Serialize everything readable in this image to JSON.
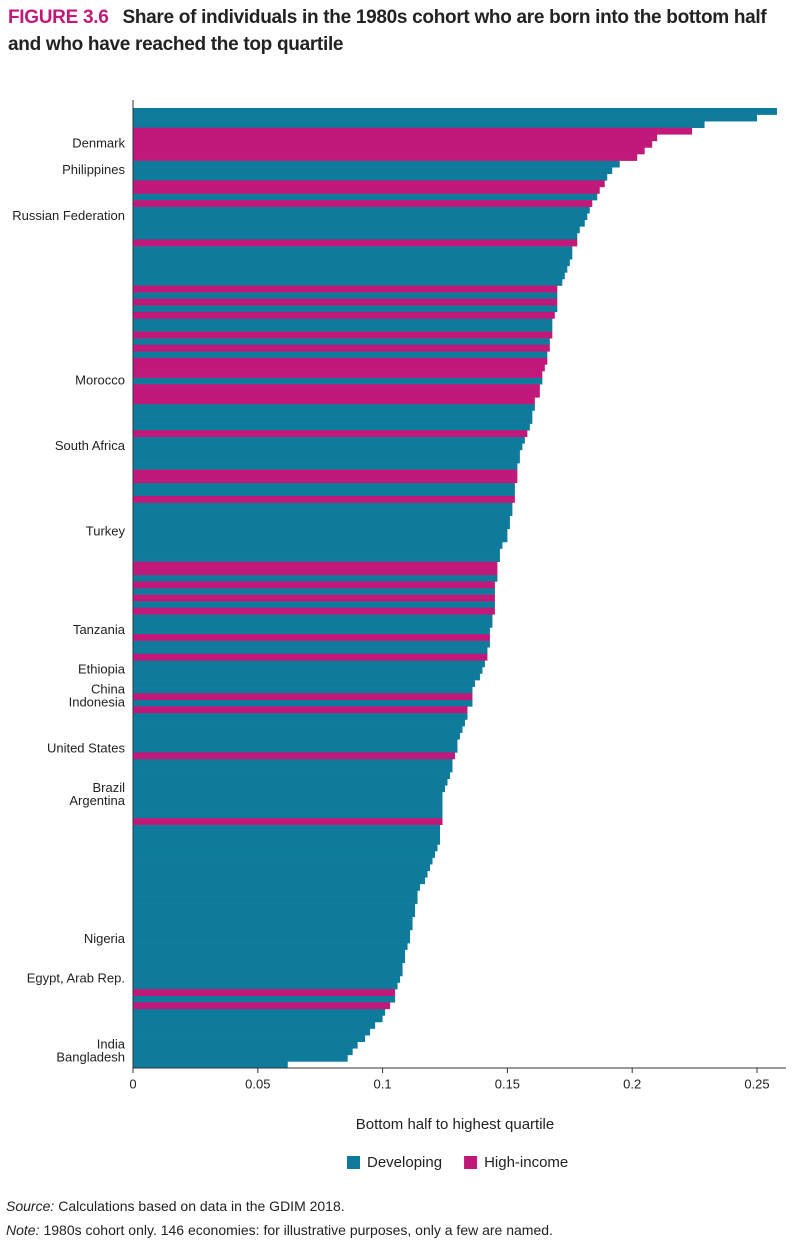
{
  "chart_data": {
    "type": "barh",
    "figure_label": "FIGURE 3.6",
    "title": "Share of individuals in the 1980s cohort who are born into the bottom half and who have reached the top quartile",
    "x_label": "Bottom half to highest quartile",
    "xlim": [
      0,
      0.26
    ],
    "xticks": [
      0,
      0.05,
      0.1,
      0.15,
      0.2,
      0.25
    ],
    "categories": [
      null,
      null,
      null,
      null,
      null,
      "Denmark",
      null,
      null,
      null,
      "Philippines",
      null,
      null,
      null,
      null,
      null,
      null,
      "Russian Federation",
      null,
      null,
      null,
      null,
      null,
      null,
      null,
      null,
      null,
      null,
      null,
      null,
      null,
      null,
      null,
      null,
      null,
      null,
      null,
      null,
      null,
      null,
      null,
      null,
      "Morocco",
      null,
      null,
      null,
      null,
      null,
      null,
      null,
      null,
      null,
      "South Africa",
      null,
      null,
      null,
      null,
      null,
      null,
      null,
      null,
      null,
      null,
      null,
      null,
      "Turkey",
      null,
      null,
      null,
      null,
      null,
      null,
      null,
      null,
      null,
      null,
      null,
      null,
      null,
      null,
      "Tanzania",
      null,
      null,
      null,
      null,
      null,
      "Ethiopia",
      null,
      null,
      "China",
      null,
      "Indonesia",
      null,
      null,
      null,
      null,
      null,
      null,
      "United States",
      null,
      null,
      null,
      null,
      null,
      "Brazil",
      null,
      "Argentina",
      null,
      null,
      null,
      null,
      null,
      null,
      null,
      null,
      null,
      null,
      null,
      null,
      null,
      null,
      null,
      null,
      null,
      null,
      null,
      null,
      "Nigeria",
      null,
      null,
      null,
      null,
      null,
      "Egypt, Arab Rep.",
      null,
      null,
      null,
      null,
      null,
      null,
      null,
      null,
      null,
      "India",
      null,
      "Bangladesh",
      null
    ],
    "series": [
      {
        "name": "Developing",
        "color": "#0e7b9c",
        "values": [
          0.258,
          0.25,
          0.229,
          null,
          null,
          null,
          null,
          null,
          0.195,
          0.192,
          0.19,
          null,
          null,
          0.186,
          null,
          0.183,
          0.182,
          0.181,
          0.179,
          0.178,
          null,
          0.176,
          0.176,
          0.175,
          0.174,
          0.173,
          0.172,
          null,
          0.17,
          null,
          0.17,
          null,
          0.168,
          0.168,
          null,
          0.167,
          null,
          0.166,
          null,
          null,
          null,
          0.164,
          null,
          null,
          null,
          0.161,
          0.16,
          0.16,
          0.159,
          null,
          0.157,
          0.156,
          0.155,
          0.155,
          0.154,
          null,
          null,
          0.153,
          0.153,
          null,
          0.152,
          0.152,
          0.151,
          0.151,
          0.15,
          0.15,
          0.148,
          0.147,
          0.147,
          null,
          null,
          0.146,
          null,
          0.145,
          null,
          0.145,
          null,
          0.144,
          0.144,
          0.143,
          null,
          0.143,
          0.142,
          null,
          0.141,
          0.14,
          0.139,
          0.137,
          0.136,
          null,
          0.136,
          null,
          0.134,
          0.133,
          0.132,
          0.131,
          0.13,
          0.13,
          null,
          0.128,
          0.128,
          0.127,
          0.126,
          0.125,
          0.124,
          0.124,
          0.124,
          0.124,
          null,
          0.123,
          0.123,
          0.123,
          0.122,
          0.121,
          0.12,
          0.119,
          0.118,
          0.117,
          0.115,
          0.114,
          0.114,
          0.113,
          0.113,
          0.112,
          0.112,
          0.111,
          0.111,
          0.11,
          0.109,
          0.109,
          0.108,
          0.108,
          0.107,
          0.106,
          null,
          0.105,
          null,
          0.101,
          0.1,
          0.097,
          0.095,
          0.093,
          0.09,
          0.088,
          0.086,
          0.062
        ]
      },
      {
        "name": "High-income",
        "color": "#c1197a",
        "values": [
          null,
          null,
          null,
          0.224,
          0.21,
          0.208,
          0.205,
          0.202,
          null,
          null,
          null,
          0.189,
          0.187,
          null,
          0.184,
          null,
          null,
          null,
          null,
          null,
          0.178,
          null,
          null,
          null,
          null,
          null,
          null,
          0.17,
          null,
          0.17,
          null,
          0.169,
          null,
          null,
          0.168,
          null,
          0.167,
          null,
          0.166,
          0.165,
          0.164,
          null,
          0.163,
          0.163,
          0.161,
          null,
          null,
          null,
          null,
          0.158,
          null,
          null,
          null,
          null,
          null,
          0.154,
          0.154,
          null,
          null,
          0.153,
          null,
          null,
          null,
          null,
          null,
          null,
          null,
          null,
          null,
          0.146,
          0.146,
          null,
          0.145,
          null,
          0.145,
          null,
          0.145,
          null,
          null,
          null,
          0.143,
          null,
          null,
          0.142,
          null,
          null,
          null,
          null,
          null,
          0.136,
          null,
          0.134,
          null,
          null,
          null,
          null,
          null,
          null,
          0.129,
          null,
          null,
          null,
          null,
          null,
          null,
          null,
          null,
          null,
          0.124,
          null,
          null,
          null,
          null,
          null,
          null,
          null,
          null,
          null,
          null,
          null,
          null,
          null,
          null,
          null,
          null,
          null,
          null,
          null,
          null,
          null,
          null,
          null,
          null,
          null,
          0.105,
          null,
          0.103,
          null,
          null,
          null,
          null,
          null,
          null,
          null,
          null,
          null
        ]
      }
    ],
    "source_label": "Source:",
    "source": "Calculations based on data in the GDIM 2018.",
    "note_label": "Note:",
    "note": "1980s cohort only. 146 economies: for illustrative purposes, only a few are named."
  }
}
